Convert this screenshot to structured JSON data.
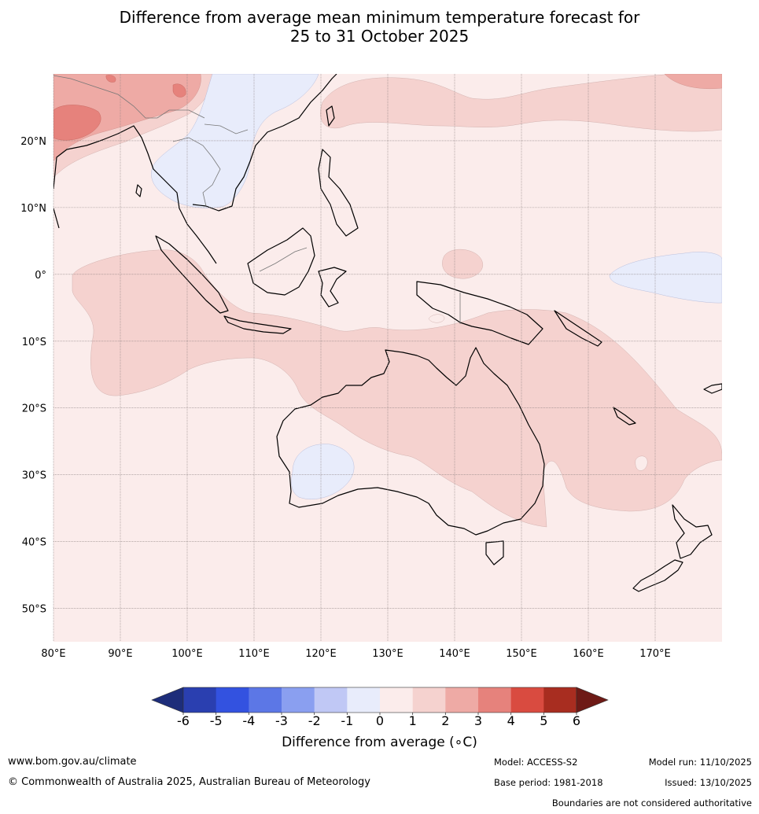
{
  "title_line1": "Difference from average mean minimum temperature forecast for",
  "title_line2": "25 to 31 October 2025",
  "map": {
    "lon_range": [
      80,
      180
    ],
    "lat_range": [
      -55,
      30
    ],
    "lat_ticks": [
      {
        "value": 20,
        "label": "20°N"
      },
      {
        "value": 10,
        "label": "10°N"
      },
      {
        "value": 0,
        "label": "0°"
      },
      {
        "value": -10,
        "label": "10°S"
      },
      {
        "value": -20,
        "label": "20°S"
      },
      {
        "value": -30,
        "label": "30°S"
      },
      {
        "value": -40,
        "label": "40°S"
      },
      {
        "value": -50,
        "label": "50°S"
      }
    ],
    "lon_ticks": [
      {
        "value": 80,
        "label": "80°E"
      },
      {
        "value": 90,
        "label": "90°E"
      },
      {
        "value": 100,
        "label": "100°E"
      },
      {
        "value": 110,
        "label": "110°E"
      },
      {
        "value": 120,
        "label": "120°E"
      },
      {
        "value": 130,
        "label": "130°E"
      },
      {
        "value": 140,
        "label": "140°E"
      },
      {
        "value": 150,
        "label": "150°E"
      },
      {
        "value": 160,
        "label": "160°E"
      },
      {
        "value": 170,
        "label": "170°E"
      }
    ]
  },
  "colorbar": {
    "title": "Difference from average (∘C)",
    "ticks": [
      "-6",
      "-5",
      "-4",
      "-3",
      "-2",
      "-1",
      "0",
      "1",
      "2",
      "3",
      "4",
      "5",
      "6"
    ],
    "under_color": "#1d2d7a",
    "over_color": "#6e1a16",
    "bins": [
      "#2a3fb0",
      "#3352e0",
      "#5c77e6",
      "#8a9ff0",
      "#c0c8f5",
      "#e8ecfb",
      "#fbeceb",
      "#f5d2cf",
      "#eeaaa5",
      "#e6827c",
      "#d94b40",
      "#a82d20"
    ]
  },
  "footer": {
    "website": "www.bom.gov.au/climate",
    "copyright": "© Commonwealth of Australia 2025, Australian Bureau of Meteorology",
    "model": "Model: ACCESS-S2",
    "base_period": "Base period: 1981-2018",
    "model_run": "Model run: 11/10/2025",
    "issued": "Issued: 13/10/2025",
    "disclaimer": "Boundaries are not considered authoritative"
  }
}
